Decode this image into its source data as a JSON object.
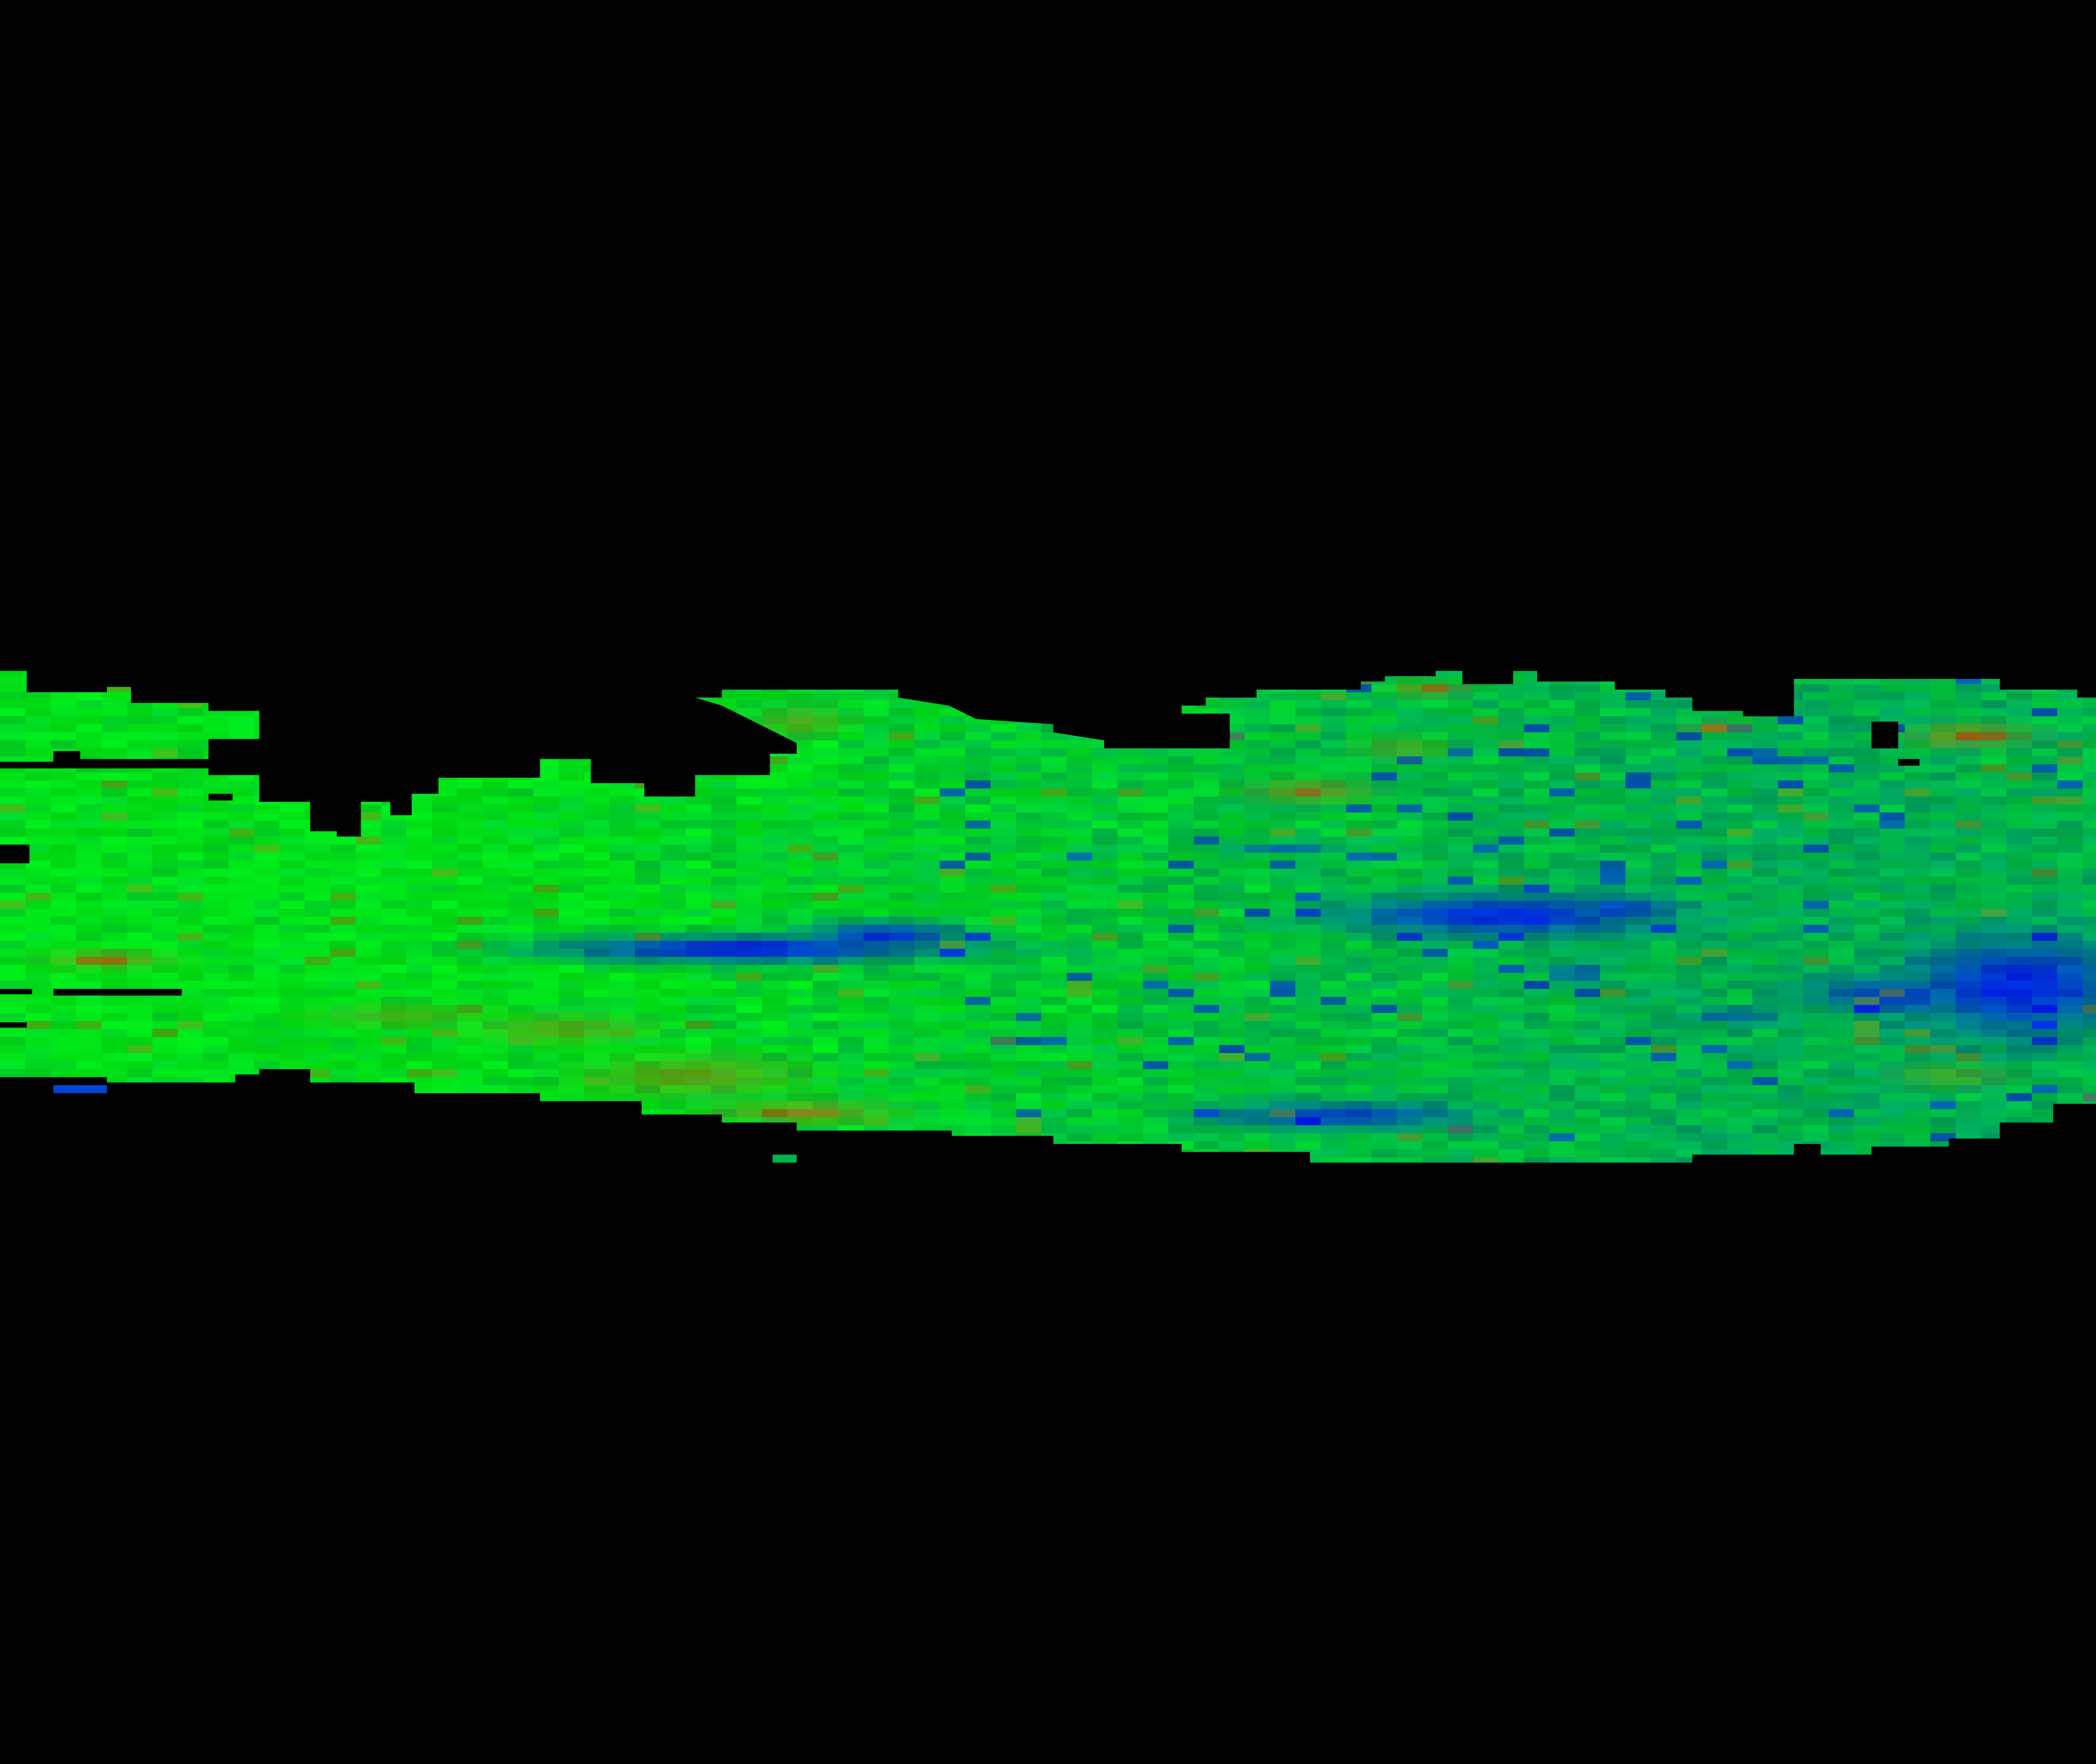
{
  "image": {
    "kind": "false-color heatmap band on black background",
    "has_text": false
  },
  "colors": {
    "background": "#000000",
    "palette": [
      "#00e016",
      "#00c83a",
      "#009a6a",
      "#0058c8",
      "#0024e0",
      "#7f8a14",
      "#a06010",
      "#b84a08"
    ]
  }
}
